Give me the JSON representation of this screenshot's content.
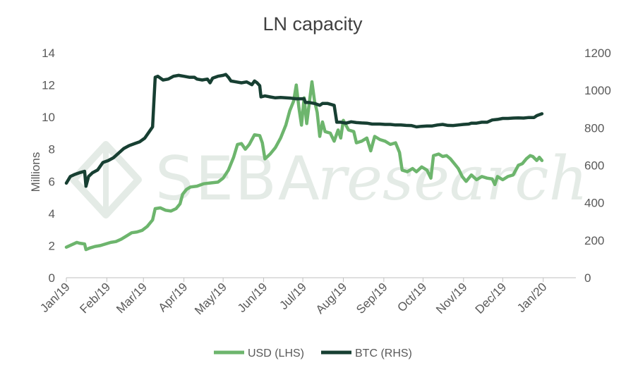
{
  "chart_data": {
    "type": "line",
    "title": "LN capacity",
    "watermark": {
      "text_plain": "SEBA",
      "text_italic": "research"
    },
    "x_tick_labels": [
      "Jan/19",
      "Feb/19",
      "Mar/19",
      "Apr/19",
      "May/19",
      "Jun/19",
      "Jul/19",
      "Aug/19",
      "Sep/19",
      "Oct/19",
      "Nov/19",
      "Dec/19",
      "Jan/20"
    ],
    "x_range_days": [
      0,
      390
    ],
    "month_start_days": [
      0,
      31,
      59,
      90,
      120,
      151,
      181,
      212,
      243,
      273,
      304,
      334,
      365
    ],
    "y_left": {
      "label": "Millions",
      "range": [
        0,
        14
      ],
      "ticks": [
        "0",
        "2",
        "4",
        "6",
        "8",
        "10",
        "12",
        "14"
      ]
    },
    "y_right": {
      "label": "",
      "range": [
        0,
        1200
      ],
      "ticks": [
        "0",
        "200",
        "400",
        "600",
        "800",
        "1000",
        "1200"
      ]
    },
    "legend": {
      "position": "bottom"
    },
    "series": [
      {
        "name": "USD (LHS)",
        "axis": "left",
        "color": "#6db56d",
        "points": [
          [
            0,
            1.9
          ],
          [
            4,
            2.05
          ],
          [
            8,
            2.2
          ],
          [
            10,
            2.15
          ],
          [
            14,
            2.1
          ],
          [
            15,
            1.75
          ],
          [
            18,
            1.85
          ],
          [
            22,
            1.95
          ],
          [
            26,
            2.0
          ],
          [
            30,
            2.1
          ],
          [
            34,
            2.2
          ],
          [
            38,
            2.25
          ],
          [
            42,
            2.4
          ],
          [
            46,
            2.6
          ],
          [
            50,
            2.8
          ],
          [
            54,
            2.85
          ],
          [
            58,
            2.95
          ],
          [
            62,
            3.2
          ],
          [
            66,
            3.6
          ],
          [
            68,
            4.3
          ],
          [
            72,
            4.35
          ],
          [
            76,
            4.2
          ],
          [
            80,
            4.15
          ],
          [
            84,
            4.3
          ],
          [
            87,
            4.6
          ],
          [
            89,
            5.2
          ],
          [
            92,
            5.5
          ],
          [
            95,
            5.65
          ],
          [
            100,
            5.7
          ],
          [
            105,
            5.85
          ],
          [
            110,
            5.9
          ],
          [
            116,
            5.95
          ],
          [
            120,
            6.2
          ],
          [
            124,
            6.7
          ],
          [
            128,
            7.5
          ],
          [
            131,
            8.3
          ],
          [
            134,
            8.35
          ],
          [
            137,
            8.0
          ],
          [
            140,
            8.3
          ],
          [
            144,
            8.9
          ],
          [
            148,
            8.85
          ],
          [
            150,
            8.4
          ],
          [
            152,
            7.4
          ],
          [
            156,
            7.7
          ],
          [
            160,
            8.1
          ],
          [
            164,
            8.7
          ],
          [
            168,
            9.5
          ],
          [
            171,
            10.4
          ],
          [
            174,
            11.0
          ],
          [
            176,
            12.0
          ],
          [
            178,
            10.6
          ],
          [
            180,
            9.5
          ],
          [
            182,
            11.2
          ],
          [
            184,
            9.6
          ],
          [
            186,
            10.9
          ],
          [
            188,
            12.2
          ],
          [
            190,
            11.0
          ],
          [
            192,
            10.3
          ],
          [
            194,
            8.8
          ],
          [
            196,
            9.7
          ],
          [
            198,
            9.1
          ],
          [
            202,
            9.0
          ],
          [
            205,
            8.5
          ],
          [
            208,
            9.2
          ],
          [
            210,
            8.7
          ],
          [
            212,
            9.8
          ],
          [
            216,
            9.2
          ],
          [
            220,
            9.1
          ],
          [
            222,
            8.4
          ],
          [
            226,
            8.5
          ],
          [
            230,
            8.7
          ],
          [
            233,
            7.9
          ],
          [
            236,
            8.8
          ],
          [
            240,
            8.6
          ],
          [
            244,
            8.5
          ],
          [
            248,
            8.3
          ],
          [
            252,
            8.4
          ],
          [
            255,
            7.8
          ],
          [
            257,
            6.7
          ],
          [
            261,
            6.6
          ],
          [
            265,
            6.8
          ],
          [
            268,
            6.6
          ],
          [
            272,
            6.9
          ],
          [
            276,
            6.7
          ],
          [
            279,
            6.2
          ],
          [
            281,
            7.6
          ],
          [
            285,
            7.7
          ],
          [
            288,
            7.55
          ],
          [
            291,
            7.6
          ],
          [
            294,
            7.4
          ],
          [
            298,
            7.0
          ],
          [
            300,
            6.8
          ],
          [
            303,
            6.3
          ],
          [
            306,
            6.0
          ],
          [
            310,
            6.4
          ],
          [
            314,
            6.1
          ],
          [
            318,
            6.3
          ],
          [
            322,
            6.2
          ],
          [
            326,
            6.15
          ],
          [
            328,
            5.8
          ],
          [
            330,
            6.3
          ],
          [
            334,
            6.1
          ],
          [
            338,
            6.3
          ],
          [
            342,
            6.4
          ],
          [
            346,
            7.0
          ],
          [
            349,
            7.1
          ],
          [
            352,
            7.4
          ],
          [
            355,
            7.6
          ],
          [
            357,
            7.55
          ],
          [
            360,
            7.3
          ],
          [
            362,
            7.5
          ],
          [
            364,
            7.3
          ]
        ]
      },
      {
        "name": "BTC (RHS)",
        "axis": "right",
        "color": "#173f32",
        "points": [
          [
            0,
            505
          ],
          [
            3,
            540
          ],
          [
            6,
            550
          ],
          [
            10,
            560
          ],
          [
            14,
            568
          ],
          [
            15,
            488
          ],
          [
            17,
            540
          ],
          [
            20,
            560
          ],
          [
            24,
            575
          ],
          [
            28,
            615
          ],
          [
            32,
            625
          ],
          [
            36,
            640
          ],
          [
            40,
            665
          ],
          [
            44,
            690
          ],
          [
            48,
            705
          ],
          [
            52,
            715
          ],
          [
            56,
            725
          ],
          [
            60,
            745
          ],
          [
            64,
            785
          ],
          [
            66,
            805
          ],
          [
            67,
            935
          ],
          [
            68,
            1070
          ],
          [
            70,
            1075
          ],
          [
            74,
            1055
          ],
          [
            78,
            1060
          ],
          [
            82,
            1075
          ],
          [
            86,
            1080
          ],
          [
            90,
            1075
          ],
          [
            94,
            1070
          ],
          [
            98,
            1070
          ],
          [
            100,
            1060
          ],
          [
            104,
            1055
          ],
          [
            108,
            1060
          ],
          [
            110,
            1040
          ],
          [
            112,
            1065
          ],
          [
            116,
            1075
          ],
          [
            120,
            1080
          ],
          [
            122,
            1085
          ],
          [
            124,
            1070
          ],
          [
            126,
            1050
          ],
          [
            130,
            1045
          ],
          [
            134,
            1040
          ],
          [
            138,
            1045
          ],
          [
            142,
            1030
          ],
          [
            144,
            1050
          ],
          [
            146,
            1040
          ],
          [
            148,
            1025
          ],
          [
            149,
            965
          ],
          [
            152,
            970
          ],
          [
            156,
            965
          ],
          [
            160,
            960
          ],
          [
            164,
            962
          ],
          [
            168,
            960
          ],
          [
            172,
            958
          ],
          [
            176,
            955
          ],
          [
            180,
            955
          ],
          [
            182,
            955
          ],
          [
            183,
            935
          ],
          [
            186,
            935
          ],
          [
            190,
            930
          ],
          [
            194,
            920
          ],
          [
            196,
            930
          ],
          [
            200,
            930
          ],
          [
            205,
            920
          ],
          [
            207,
            830
          ],
          [
            210,
            830
          ],
          [
            214,
            825
          ],
          [
            218,
            832
          ],
          [
            222,
            828
          ],
          [
            226,
            826
          ],
          [
            230,
            825
          ],
          [
            234,
            820
          ],
          [
            240,
            820
          ],
          [
            244,
            818
          ],
          [
            248,
            818
          ],
          [
            252,
            815
          ],
          [
            256,
            815
          ],
          [
            260,
            813
          ],
          [
            264,
            812
          ],
          [
            268,
            805
          ],
          [
            272,
            808
          ],
          [
            276,
            810
          ],
          [
            280,
            810
          ],
          [
            284,
            815
          ],
          [
            288,
            818
          ],
          [
            292,
            813
          ],
          [
            296,
            812
          ],
          [
            300,
            815
          ],
          [
            304,
            818
          ],
          [
            308,
            820
          ],
          [
            310,
            825
          ],
          [
            314,
            825
          ],
          [
            318,
            830
          ],
          [
            322,
            830
          ],
          [
            326,
            842
          ],
          [
            330,
            845
          ],
          [
            334,
            850
          ],
          [
            338,
            850
          ],
          [
            342,
            852
          ],
          [
            346,
            853
          ],
          [
            350,
            852
          ],
          [
            354,
            855
          ],
          [
            358,
            855
          ],
          [
            360,
            865
          ],
          [
            362,
            870
          ],
          [
            364,
            875
          ]
        ]
      }
    ]
  }
}
